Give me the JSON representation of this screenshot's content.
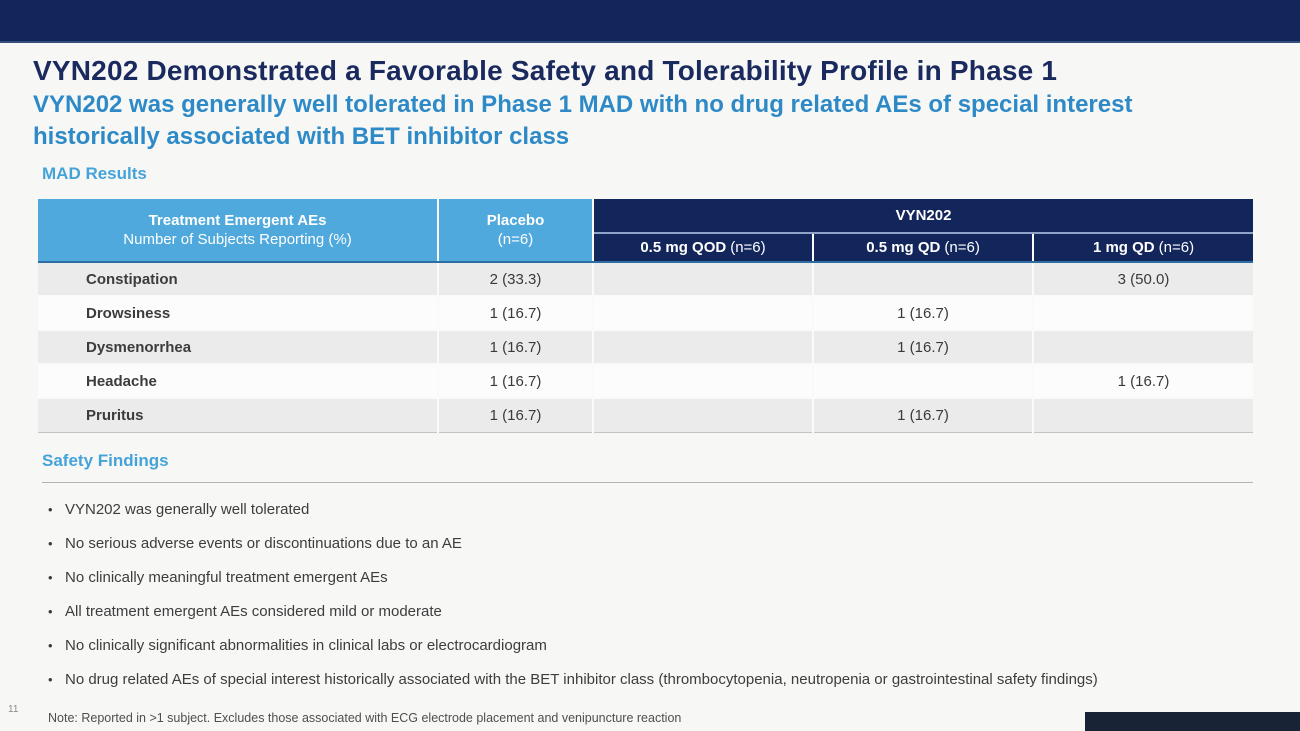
{
  "slide": {
    "title": "VYN202 Demonstrated a Favorable Safety and Tolerability Profile in Phase 1",
    "subtitle": "VYN202 was generally well tolerated in Phase 1 MAD with no drug related AEs of special interest historically associated with BET inhibitor class",
    "page_number": "11",
    "footnote": "Note: Reported in >1 subject. Excludes those associated with ECG electrode placement and venipuncture reaction"
  },
  "colors": {
    "navy": "#12265b",
    "title_navy": "#1b2a5e",
    "subtitle_blue": "#2e8ac6",
    "section_blue": "#45a3d9",
    "table_header_blue": "#4fa9dc",
    "row_gray": "#ebebeb"
  },
  "mad_results": {
    "section_label": "MAD Results",
    "table": {
      "row_header_title": "Treatment Emergent AEs",
      "row_header_subtitle": "Number of Subjects Reporting (%)",
      "placebo_label": "Placebo",
      "placebo_n": "(n=6)",
      "group_header": "VYN202",
      "dose_columns": [
        {
          "dose": "0.5 mg QOD",
          "n": "(n=6)"
        },
        {
          "dose": "0.5 mg QD",
          "n": "(n=6)"
        },
        {
          "dose": "1 mg QD",
          "n": "(n=6)"
        }
      ],
      "rows": [
        {
          "label": "Constipation",
          "placebo": "2 (33.3)",
          "qod05": "",
          "qd05": "",
          "qd1": "3 (50.0)"
        },
        {
          "label": "Drowsiness",
          "placebo": "1 (16.7)",
          "qod05": "",
          "qd05": "1 (16.7)",
          "qd1": ""
        },
        {
          "label": "Dysmenorrhea",
          "placebo": "1 (16.7)",
          "qod05": "",
          "qd05": "1 (16.7)",
          "qd1": ""
        },
        {
          "label": "Headache",
          "placebo": "1 (16.7)",
          "qod05": "",
          "qd05": "",
          "qd1": "1 (16.7)"
        },
        {
          "label": "Pruritus",
          "placebo": "1 (16.7)",
          "qod05": "",
          "qd05": "1 (16.7)",
          "qd1": ""
        }
      ]
    }
  },
  "safety_findings": {
    "section_label": "Safety Findings",
    "bullets": [
      "VYN202 was generally well tolerated",
      "No serious adverse events or discontinuations due to an AE",
      "No clinically meaningful treatment emergent AEs",
      "All treatment emergent AEs considered mild or moderate",
      "No clinically significant abnormalities in clinical labs or electrocardiogram",
      "No drug related AEs of special interest historically associated with the BET inhibitor class (thrombocytopenia, neutropenia or gastrointestinal safety findings)"
    ]
  }
}
